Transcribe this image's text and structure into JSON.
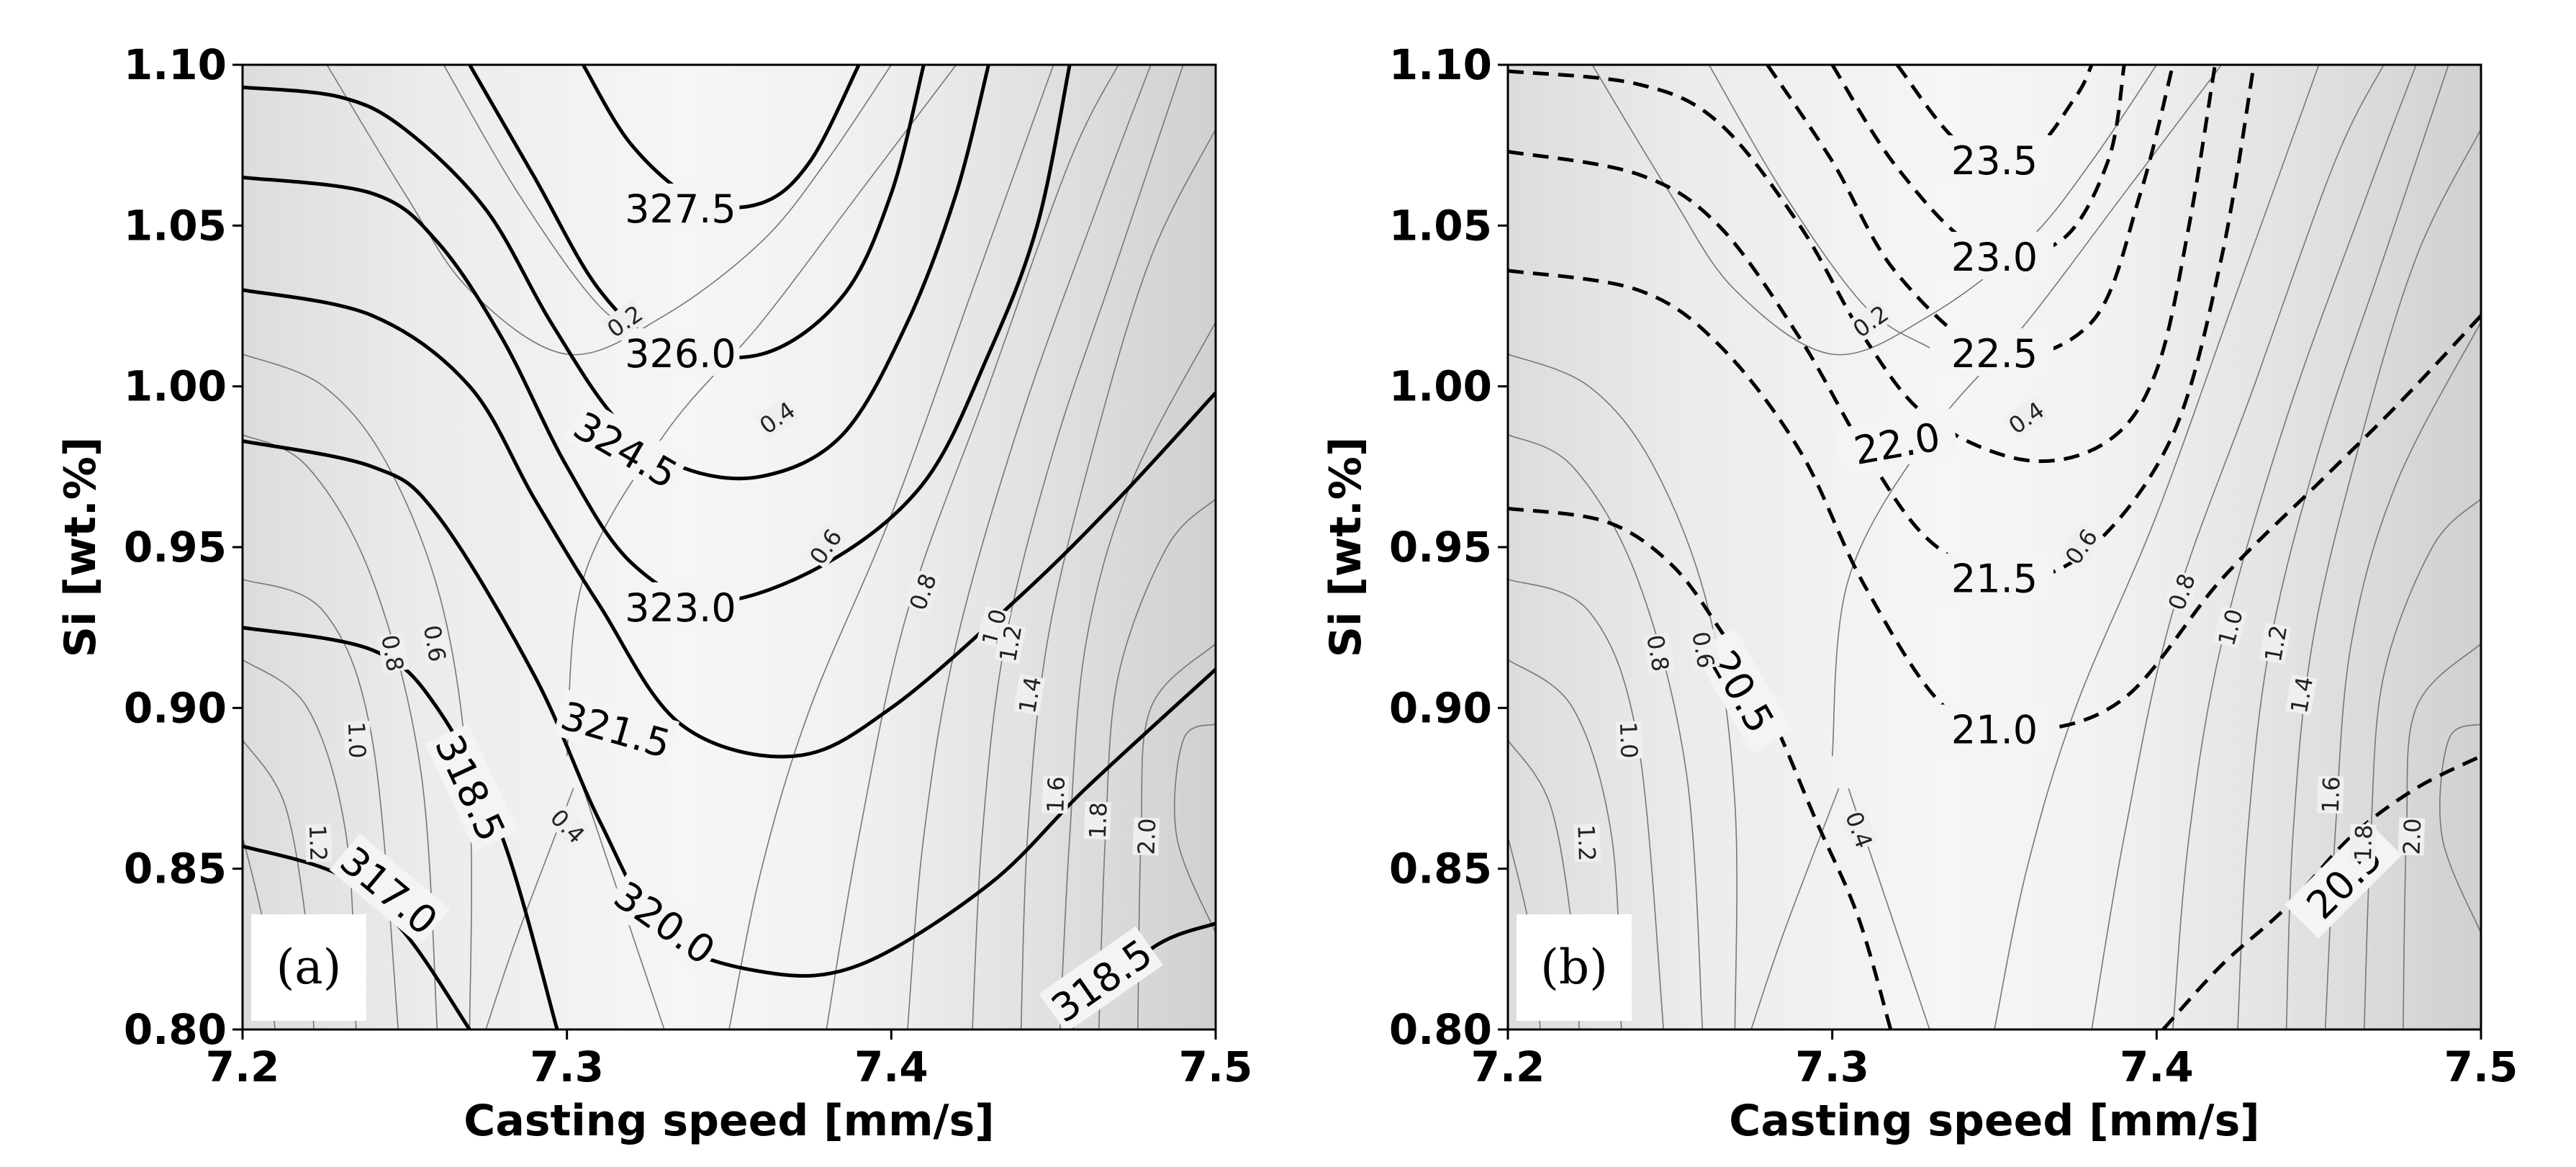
{
  "chart_data": [
    {
      "type": "contour",
      "panel_label": "(a)",
      "xlabel": "Casting speed [mm/s]",
      "ylabel": "Si [wt.%]",
      "xlim": [
        7.2,
        7.5
      ],
      "ylim": [
        0.8,
        1.1
      ],
      "xticks": [
        "7.2",
        "7.3",
        "7.4",
        "7.5"
      ],
      "yticks": [
        "0.80",
        "0.85",
        "0.90",
        "0.95",
        "1.00",
        "1.05",
        "1.10"
      ],
      "main_contours": {
        "style": "solid",
        "levels": [
          {
            "label": "317.0",
            "label_at": [
              7.245,
              0.843
            ],
            "label_angle": 40,
            "points": [
              [
                7.2,
                0.857
              ],
              [
                7.23,
                0.848
              ],
              [
                7.25,
                0.83
              ],
              [
                7.27,
                0.8
              ]
            ]
          },
          {
            "label": "318.5",
            "label_at": [
              7.27,
              0.875
            ],
            "label_angle": 65,
            "points": [
              [
                7.2,
                0.925
              ],
              [
                7.24,
                0.918
              ],
              [
                7.26,
                0.9
              ],
              [
                7.28,
                0.86
              ],
              [
                7.297,
                0.8
              ]
            ]
          },
          {
            "label": "318.5",
            "label_at": [
              7.465,
              0.815
            ],
            "label_angle": -35,
            "points": [
              [
                7.455,
                0.8
              ],
              [
                7.48,
                0.825
              ],
              [
                7.5,
                0.833
              ]
            ]
          },
          {
            "label": "320.0",
            "label_at": [
              7.33,
              0.833
            ],
            "label_angle": 35,
            "points": [
              [
                7.2,
                0.983
              ],
              [
                7.24,
                0.975
              ],
              [
                7.26,
                0.96
              ],
              [
                7.29,
                0.91
              ],
              [
                7.31,
                0.865
              ],
              [
                7.33,
                0.83
              ],
              [
                7.36,
                0.818
              ],
              [
                7.39,
                0.82
              ],
              [
                7.43,
                0.845
              ],
              [
                7.46,
                0.875
              ],
              [
                7.5,
                0.912
              ]
            ]
          },
          {
            "label": "321.5",
            "label_at": [
              7.315,
              0.893
            ],
            "label_angle": 16,
            "points": [
              [
                7.2,
                1.03
              ],
              [
                7.24,
                1.022
              ],
              [
                7.27,
                1.0
              ],
              [
                7.29,
                0.965
              ],
              [
                7.31,
                0.932
              ],
              [
                7.335,
                0.895
              ],
              [
                7.37,
                0.885
              ],
              [
                7.4,
                0.9
              ],
              [
                7.44,
                0.935
              ],
              [
                7.47,
                0.965
              ],
              [
                7.5,
                0.998
              ]
            ]
          },
          {
            "label": "323.0",
            "label_at": [
              7.335,
              0.931
            ],
            "label_angle": 0,
            "points": [
              [
                7.2,
                1.065
              ],
              [
                7.24,
                1.06
              ],
              [
                7.26,
                1.045
              ],
              [
                7.28,
                1.015
              ],
              [
                7.3,
                0.975
              ],
              [
                7.32,
                0.945
              ],
              [
                7.345,
                0.933
              ],
              [
                7.38,
                0.945
              ],
              [
                7.41,
                0.97
              ],
              [
                7.43,
                1.01
              ],
              [
                7.445,
                1.05
              ],
              [
                7.455,
                1.1
              ]
            ]
          },
          {
            "label": "324.5",
            "label_at": [
              7.318,
              0.98
            ],
            "label_angle": 30,
            "points": [
              [
                7.2,
                1.093
              ],
              [
                7.23,
                1.09
              ],
              [
                7.25,
                1.08
              ],
              [
                7.275,
                1.055
              ],
              [
                7.295,
                1.02
              ],
              [
                7.315,
                0.99
              ],
              [
                7.335,
                0.975
              ],
              [
                7.36,
                0.972
              ],
              [
                7.385,
                0.985
              ],
              [
                7.405,
                1.02
              ],
              [
                7.42,
                1.06
              ],
              [
                7.43,
                1.1
              ]
            ]
          },
          {
            "label": "326.0",
            "label_at": [
              7.335,
              1.01
            ],
            "label_angle": 0,
            "points": [
              [
                7.27,
                1.1
              ],
              [
                7.29,
                1.065
              ],
              [
                7.31,
                1.03
              ],
              [
                7.33,
                1.013
              ],
              [
                7.36,
                1.01
              ],
              [
                7.385,
                1.028
              ],
              [
                7.4,
                1.06
              ],
              [
                7.41,
                1.1
              ]
            ]
          },
          {
            "label": "327.5",
            "label_at": [
              7.335,
              1.055
            ],
            "label_angle": 0,
            "points": [
              [
                7.305,
                1.1
              ],
              [
                7.32,
                1.075
              ],
              [
                7.34,
                1.058
              ],
              [
                7.36,
                1.057
              ],
              [
                7.375,
                1.07
              ],
              [
                7.39,
                1.1
              ]
            ]
          }
        ]
      },
      "minor_contours": [
        {
          "label": "0.2",
          "label_at": [
            7.318,
            1.02
          ],
          "label_angle": -35
        },
        {
          "label": "0.4",
          "label_at": [
            7.3,
            0.863
          ],
          "label_angle": 45
        },
        {
          "label": "0.4",
          "label_at": [
            7.365,
            0.99
          ],
          "label_angle": -35
        },
        {
          "label": "0.6",
          "label_at": [
            7.38,
            0.95
          ],
          "label_angle": -55
        },
        {
          "label": "0.8",
          "label_at": [
            7.41,
            0.936
          ],
          "label_angle": -70
        },
        {
          "label": "1.0",
          "label_at": [
            7.432,
            0.925
          ],
          "label_angle": -75
        },
        {
          "label": "1.2",
          "label_at": [
            7.437,
            0.92
          ],
          "label_angle": -80
        },
        {
          "label": "1.4",
          "label_at": [
            7.443,
            0.904
          ],
          "label_angle": -80
        },
        {
          "label": "1.6",
          "label_at": [
            7.451,
            0.873
          ],
          "label_angle": -88
        },
        {
          "label": "1.8",
          "label_at": [
            7.464,
            0.865
          ],
          "label_angle": -88
        },
        {
          "label": "2.0",
          "label_at": [
            7.479,
            0.86
          ],
          "label_angle": -88
        },
        {
          "label": "0.6",
          "label_at": [
            7.259,
            0.92
          ],
          "label_angle": 80
        },
        {
          "label": "0.8",
          "label_at": [
            7.246,
            0.917
          ],
          "label_angle": 80
        },
        {
          "label": "1.0",
          "label_at": [
            7.235,
            0.89
          ],
          "label_angle": 88
        },
        {
          "label": "1.2",
          "label_at": [
            7.223,
            0.858
          ],
          "label_angle": 88
        }
      ]
    },
    {
      "type": "contour",
      "panel_label": "(b)",
      "xlabel": "Casting speed [mm/s]",
      "ylabel": "Si [wt.%]",
      "xlim": [
        7.2,
        7.5
      ],
      "ylim": [
        0.8,
        1.1
      ],
      "xticks": [
        "7.2",
        "7.3",
        "7.4",
        "7.5"
      ],
      "yticks": [
        "0.80",
        "0.85",
        "0.90",
        "0.95",
        "1.00",
        "1.05",
        "1.10"
      ],
      "main_contours": {
        "style": "dashed",
        "levels": [
          {
            "label": "20.5",
            "label_at": [
              7.272,
              0.905
            ],
            "label_angle": 60,
            "points": [
              [
                7.2,
                0.962
              ],
              [
                7.23,
                0.958
              ],
              [
                7.25,
                0.945
              ],
              [
                7.265,
                0.925
              ],
              [
                7.28,
                0.9
              ],
              [
                7.295,
                0.865
              ],
              [
                7.308,
                0.835
              ],
              [
                7.318,
                0.8
              ]
            ]
          },
          {
            "label": "20.5",
            "label_at": [
              7.458,
              0.846
            ],
            "label_angle": -45,
            "points": [
              [
                7.402,
                0.8
              ],
              [
                7.42,
                0.82
              ],
              [
                7.44,
                0.838
              ],
              [
                7.46,
                0.86
              ],
              [
                7.48,
                0.875
              ],
              [
                7.5,
                0.885
              ]
            ]
          },
          {
            "label": "21.0",
            "label_at": [
              7.35,
              0.893
            ],
            "label_angle": 0,
            "points": [
              [
                7.2,
                1.036
              ],
              [
                7.24,
                1.03
              ],
              [
                7.265,
                1.013
              ],
              [
                7.29,
                0.98
              ],
              [
                7.31,
                0.938
              ],
              [
                7.335,
                0.9
              ],
              [
                7.36,
                0.893
              ],
              [
                7.39,
                0.903
              ],
              [
                7.42,
                0.94
              ],
              [
                7.45,
                0.97
              ],
              [
                7.475,
                0.995
              ],
              [
                7.5,
                1.022
              ]
            ]
          },
          {
            "label": "21.5",
            "label_at": [
              7.35,
              0.94
            ],
            "label_angle": 0,
            "points": [
              [
                7.2,
                1.073
              ],
              [
                7.24,
                1.066
              ],
              [
                7.265,
                1.05
              ],
              [
                7.29,
                1.015
              ],
              [
                7.31,
                0.98
              ],
              [
                7.33,
                0.952
              ],
              [
                7.355,
                0.94
              ],
              [
                7.38,
                0.95
              ],
              [
                7.405,
                0.985
              ],
              [
                7.42,
                1.04
              ],
              [
                7.43,
                1.1
              ]
            ]
          },
          {
            "label": "22.0",
            "label_at": [
              7.32,
              0.982
            ],
            "label_angle": -10,
            "points": [
              [
                7.2,
                1.098
              ],
              [
                7.24,
                1.094
              ],
              [
                7.265,
                1.082
              ],
              [
                7.29,
                1.05
              ],
              [
                7.31,
                1.015
              ],
              [
                7.33,
                0.99
              ],
              [
                7.36,
                0.977
              ],
              [
                7.385,
                0.983
              ],
              [
                7.4,
                1.005
              ],
              [
                7.41,
                1.05
              ],
              [
                7.418,
                1.1
              ]
            ]
          },
          {
            "label": "22.5",
            "label_at": [
              7.35,
              1.01
            ],
            "label_angle": 0,
            "points": [
              [
                7.28,
                1.1
              ],
              [
                7.3,
                1.07
              ],
              [
                7.32,
                1.035
              ],
              [
                7.35,
                1.01
              ],
              [
                7.38,
                1.02
              ],
              [
                7.395,
                1.06
              ],
              [
                7.405,
                1.1
              ]
            ]
          },
          {
            "label": "23.0",
            "label_at": [
              7.35,
              1.04
            ],
            "label_angle": 0,
            "points": [
              [
                7.3,
                1.1
              ],
              [
                7.32,
                1.068
              ],
              [
                7.345,
                1.043
              ],
              [
                7.37,
                1.045
              ],
              [
                7.385,
                1.07
              ],
              [
                7.39,
                1.1
              ]
            ]
          },
          {
            "label": "23.5",
            "label_at": [
              7.35,
              1.07
            ],
            "label_angle": 0,
            "points": [
              [
                7.32,
                1.1
              ],
              [
                7.34,
                1.075
              ],
              [
                7.36,
                1.072
              ],
              [
                7.375,
                1.09
              ],
              [
                7.38,
                1.1
              ]
            ]
          }
        ]
      },
      "minor_contours": [
        {
          "label": "0.2",
          "label_at": [
            7.312,
            1.02
          ],
          "label_angle": -35
        },
        {
          "label": "0.4",
          "label_at": [
            7.36,
            0.99
          ],
          "label_angle": -35
        },
        {
          "label": "0.4",
          "label_at": [
            7.308,
            0.862
          ],
          "label_angle": 70
        },
        {
          "label": "0.6",
          "label_at": [
            7.377,
            0.95
          ],
          "label_angle": -55
        },
        {
          "label": "0.8",
          "label_at": [
            7.408,
            0.936
          ],
          "label_angle": -70
        },
        {
          "label": "1.0",
          "label_at": [
            7.423,
            0.925
          ],
          "label_angle": -75
        },
        {
          "label": "1.2",
          "label_at": [
            7.437,
            0.92
          ],
          "label_angle": -80
        },
        {
          "label": "1.4",
          "label_at": [
            7.445,
            0.904
          ],
          "label_angle": -80
        },
        {
          "label": "1.6",
          "label_at": [
            7.454,
            0.873
          ],
          "label_angle": -88
        },
        {
          "label": "1.8",
          "label_at": [
            7.464,
            0.858
          ],
          "label_angle": -88
        },
        {
          "label": "2.0",
          "label_at": [
            7.479,
            0.86
          ],
          "label_angle": -88
        },
        {
          "label": "0.6",
          "label_at": [
            7.26,
            0.918
          ],
          "label_angle": 80
        },
        {
          "label": "0.8",
          "label_at": [
            7.246,
            0.917
          ],
          "label_angle": 80
        },
        {
          "label": "1.0",
          "label_at": [
            7.237,
            0.89
          ],
          "label_angle": 88
        },
        {
          "label": "1.2",
          "label_at": [
            7.224,
            0.858
          ],
          "label_angle": 88
        }
      ]
    }
  ]
}
